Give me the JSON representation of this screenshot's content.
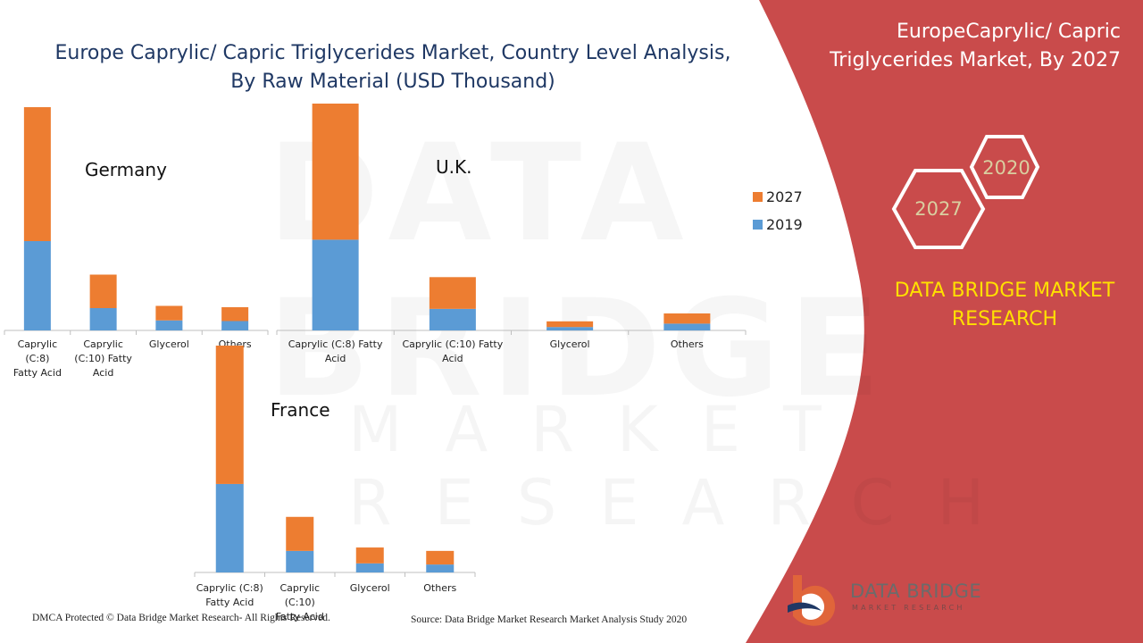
{
  "header": {
    "title_line1": "Europe  Caprylic/ Capric Triglycerides Market, Country Level Analysis,",
    "title_line2": "By Raw Material (USD Thousand)"
  },
  "side_panel": {
    "title_line1": "EuropeCaprylic/ Capric",
    "title_line2": "Triglycerides Market, By 2027",
    "hex_1": "2020",
    "hex_2": "2027",
    "brand_line1": "DATA BRIDGE MARKET",
    "brand_line2": "RESEARCH",
    "panel_color": "#c94b4b"
  },
  "logo": {
    "name": "DATA BRIDGE",
    "sub": "MARKET RESEARCH"
  },
  "footer": {
    "left": "DMCA Protected © Data Bridge Market Research- All Rights Reserved.",
    "right": "Source: Data Bridge Market Research Market Analysis Study 2020"
  },
  "colors": {
    "s2019": "#5b9bd5",
    "s2027": "#ed7d31"
  },
  "legend": [
    {
      "name": "2027",
      "color": "#ed7d31"
    },
    {
      "name": "2019",
      "color": "#5b9bd5"
    }
  ],
  "chart_data": [
    {
      "type": "bar",
      "stacked": true,
      "country": "Germany",
      "categories": [
        "Caprylic (C:8) Fatty Acid",
        "Caprylic (C:10) Fatty Acid",
        "Glycerol",
        "Others"
      ],
      "series": [
        {
          "name": "2019",
          "values": [
            40,
            10,
            4.5,
            4.2
          ]
        },
        {
          "name": "2027",
          "values": [
            60,
            15,
            6.5,
            6.2
          ]
        }
      ],
      "ylim": [
        0,
        100
      ]
    },
    {
      "type": "bar",
      "stacked": true,
      "country": "U.K.",
      "categories": [
        "Caprylic (C:8) Fatty Acid",
        "Caprylic (C:10) Fatty Acid",
        "Glycerol",
        "Others"
      ],
      "series": [
        {
          "name": "2019",
          "values": [
            40,
            9.5,
            1.5,
            3
          ]
        },
        {
          "name": "2027",
          "values": [
            60,
            14,
            2.5,
            4.5
          ]
        }
      ],
      "ylim": [
        0,
        100
      ]
    },
    {
      "type": "bar",
      "stacked": true,
      "country": "France",
      "categories": [
        "Caprylic (C:8) Fatty Acid",
        "Caprylic (C:10) Fatty Acid",
        "Glycerol",
        "Others"
      ],
      "series": [
        {
          "name": "2019",
          "values": [
            39,
            9.5,
            4,
            3.5
          ]
        },
        {
          "name": "2027",
          "values": [
            61,
            15,
            7,
            6
          ]
        }
      ],
      "ylim": [
        0,
        100
      ]
    }
  ]
}
